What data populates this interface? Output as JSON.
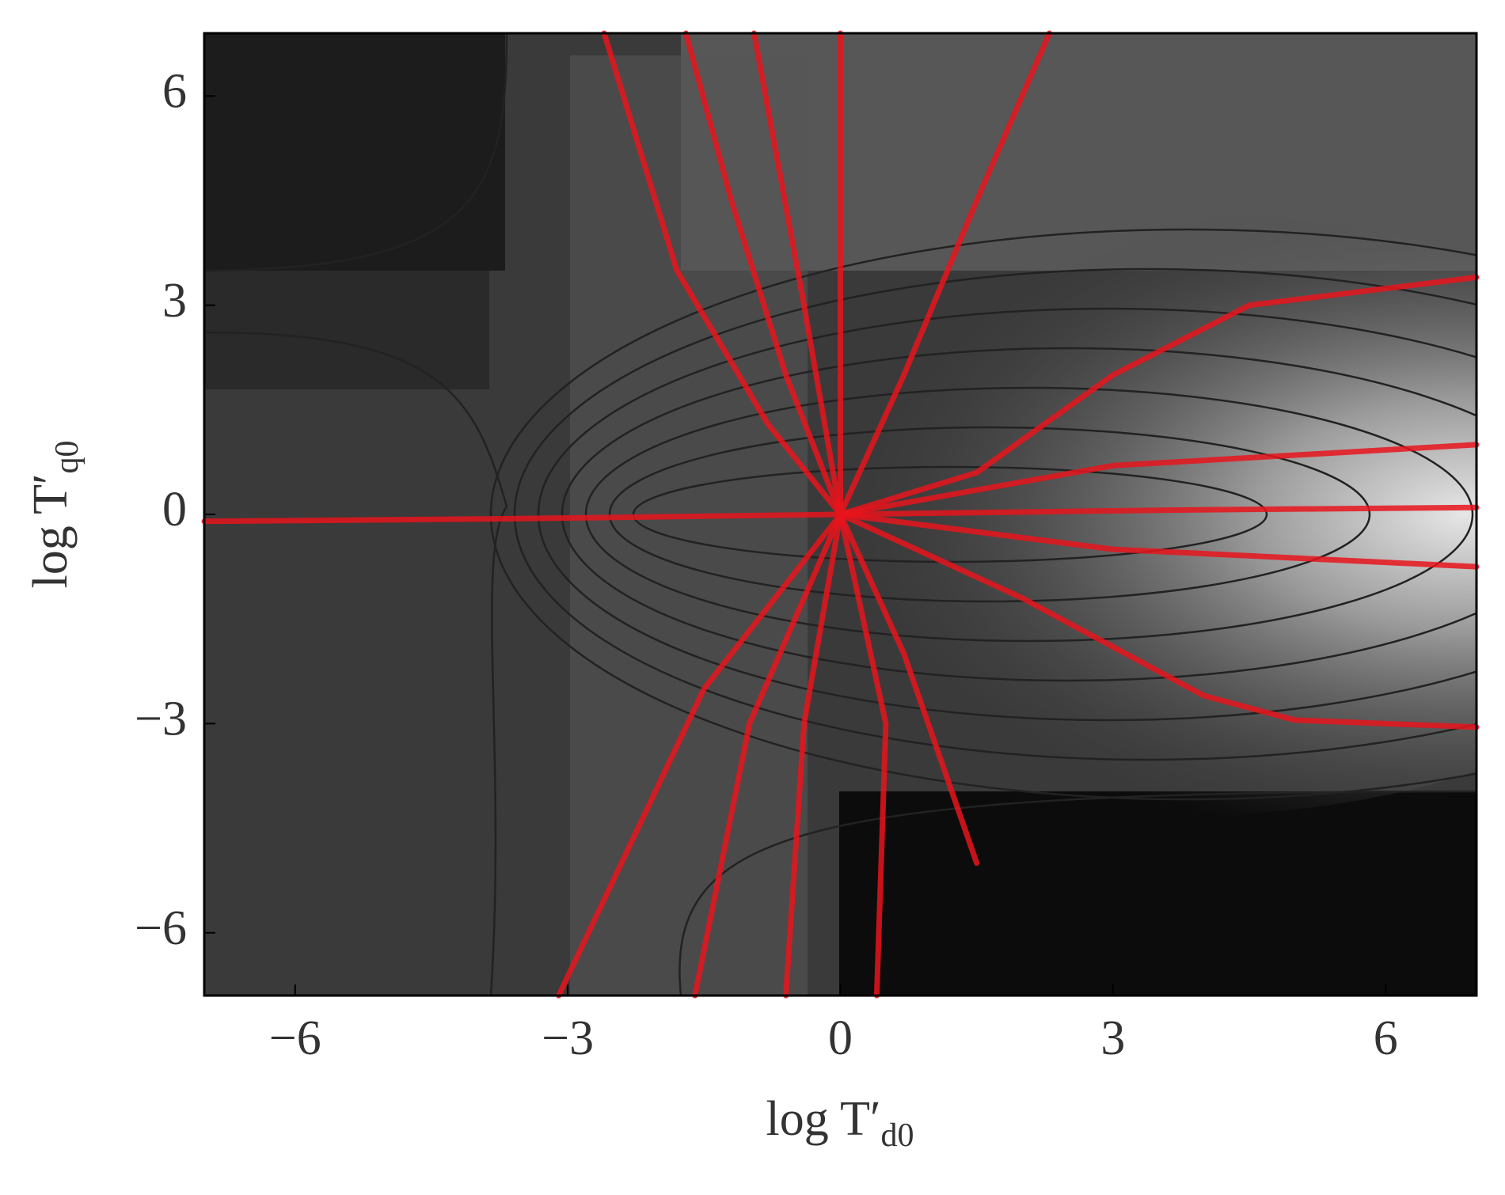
{
  "chart_data": {
    "type": "line",
    "x_label": {
      "text": "log T′",
      "sub": "d0"
    },
    "y_label": {
      "text": "log T′",
      "sub": "q0"
    },
    "xlim": [
      -7,
      7
    ],
    "ylim": [
      -6.9,
      6.9
    ],
    "xticks": [
      {
        "value": -6,
        "label": "−6"
      },
      {
        "value": -3,
        "label": "−3"
      },
      0,
      3,
      6
    ],
    "yticks": [
      {
        "value": -6,
        "label": "−6"
      },
      {
        "value": -3,
        "label": "−3"
      },
      0,
      3,
      6
    ],
    "series": [
      {
        "color": "#e8141c",
        "x": [
          -7,
          -3.5,
          0
        ],
        "y": [
          -0.1,
          -0.06,
          0
        ]
      },
      {
        "color": "#e8141c",
        "x": [
          0,
          3.5,
          7
        ],
        "y": [
          0,
          0.06,
          0.1
        ]
      },
      {
        "color": "#e8141c",
        "x": [
          0,
          0,
          0
        ],
        "y": [
          0,
          3.5,
          6.9
        ]
      },
      {
        "color": "#e8141c",
        "x": [
          0,
          -0.4,
          -0.95
        ],
        "y": [
          0,
          3,
          6.9
        ]
      },
      {
        "color": "#e8141c",
        "x": [
          0,
          -0.6,
          -1.2,
          -1.7
        ],
        "y": [
          0,
          2,
          4.5,
          6.9
        ]
      },
      {
        "color": "#e8141c",
        "x": [
          0,
          -0.8,
          -1.8,
          -2.6
        ],
        "y": [
          0,
          1.3,
          3.5,
          6.9
        ]
      },
      {
        "color": "#e8141c",
        "x": [
          0,
          0.7,
          1.5,
          2.3
        ],
        "y": [
          0,
          2,
          4.5,
          6.9
        ]
      },
      {
        "color": "#e8141c",
        "x": [
          0,
          1.5,
          3,
          4.5,
          7
        ],
        "y": [
          0,
          0.6,
          2,
          3,
          3.4
        ]
      },
      {
        "color": "#e8141c",
        "x": [
          0,
          3,
          7
        ],
        "y": [
          0,
          0.7,
          1.0
        ]
      },
      {
        "color": "#e8141c",
        "x": [
          0,
          3,
          7
        ],
        "y": [
          0,
          -0.5,
          -0.75
        ]
      },
      {
        "color": "#e8141c",
        "x": [
          0,
          2,
          4,
          5,
          7
        ],
        "y": [
          0,
          -1.2,
          -2.6,
          -2.95,
          -3.05
        ]
      },
      {
        "color": "#e8141c",
        "x": [
          0,
          0.7,
          1.5
        ],
        "y": [
          0,
          -2,
          -5
        ]
      },
      {
        "color": "#e8141c",
        "x": [
          0,
          0.5,
          0.4
        ],
        "y": [
          0,
          -3,
          -6.9
        ]
      },
      {
        "color": "#e8141c",
        "x": [
          0,
          -0.4,
          -0.6
        ],
        "y": [
          0,
          -3,
          -6.9
        ]
      },
      {
        "color": "#e8141c",
        "x": [
          0,
          -1.0,
          -1.6
        ],
        "y": [
          0,
          -3,
          -6.9
        ]
      },
      {
        "color": "#e8141c",
        "x": [
          0,
          -1.5,
          -3.1
        ],
        "y": [
          0,
          -2.5,
          -6.9
        ]
      }
    ]
  }
}
